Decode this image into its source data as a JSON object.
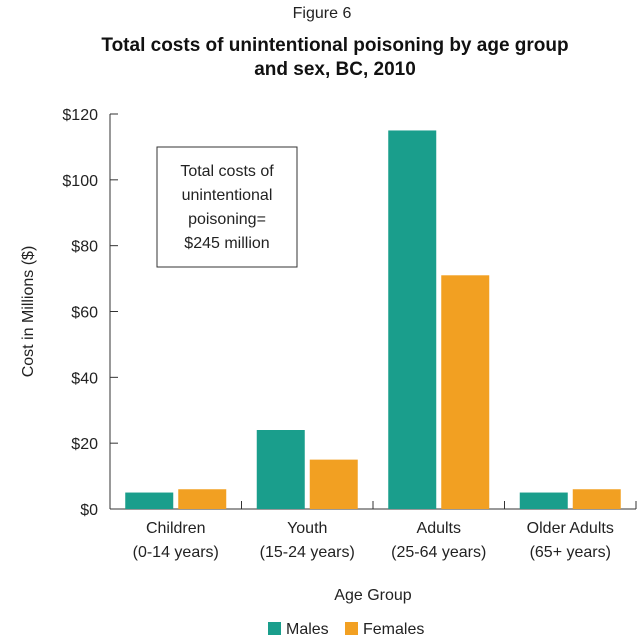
{
  "figure_label": "Figure 6",
  "chart_data": {
    "type": "bar",
    "title_lines": [
      "Total costs of unintentional poisoning by age group",
      "and sex, BC, 2010"
    ],
    "xlabel": "Age Group",
    "ylabel": "Cost in Millions ($)",
    "ylim": [
      0,
      120
    ],
    "yticks": [
      0,
      20,
      40,
      60,
      80,
      100,
      120
    ],
    "ytick_labels": [
      "$0",
      "$20",
      "$40",
      "$60",
      "$80",
      "$100",
      "$120"
    ],
    "categories": [
      [
        "Children",
        "(0-14 years)"
      ],
      [
        "Youth",
        "(15-24 years)"
      ],
      [
        "Adults",
        "(25-64 years)"
      ],
      [
        "Older Adults",
        "(65+ years)"
      ]
    ],
    "series": [
      {
        "name": "Males",
        "color": "#1a9e8c",
        "values": [
          5,
          24,
          115,
          5
        ]
      },
      {
        "name": "Females",
        "color": "#f2a022",
        "values": [
          6,
          15,
          71,
          6
        ]
      }
    ],
    "annotation": [
      "Total costs of",
      "unintentional",
      "poisoning=",
      "$245 million"
    ],
    "grid": false,
    "legend_position": "bottom-center"
  }
}
